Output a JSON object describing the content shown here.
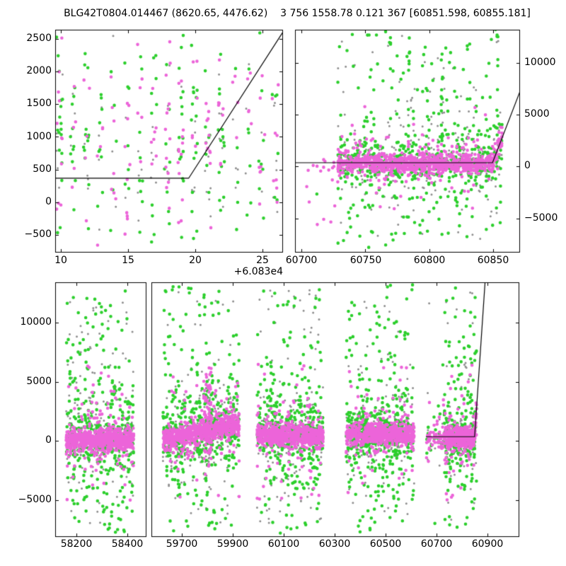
{
  "title": "BLG42T0804.014467 (8620.65, 4476.62)    3 756 1558.78 0.121 367 [60851.598, 60855.181]",
  "chart_data": {
    "type": "scatter",
    "figure_background": "#ffffff",
    "colors": {
      "magenta": "#ec64d9",
      "green": "#2ccf2c",
      "gray": "#8e8e8e",
      "model_line": "#000000"
    },
    "marker_px": {
      "magenta": 4.6,
      "green": 4.6,
      "gray": 3.0
    },
    "model": {
      "baseline_flux": 367,
      "t_kink": 60849.5,
      "slope_per_day": 320
    },
    "band_profile": {
      "magenta": {
        "core": [
          0.8,
          430
        ],
        "mid": [
          0.15,
          1300
        ],
        "wild": [
          -5000,
          6500
        ]
      },
      "green": {
        "core": [
          0.4,
          800
        ],
        "mid": [
          0.32,
          2300
        ],
        "wild": [
          -7800,
          13200
        ]
      },
      "gray": {
        "core": [
          0.5,
          900
        ],
        "mid": [
          0.3,
          2500
        ],
        "wild": [
          -7000,
          12800
        ]
      }
    },
    "panels": [
      {
        "id": "top_left",
        "xlim": [
          60839.6,
          60856.5
        ],
        "ylim": [
          -770,
          2640
        ],
        "x_offset_text": "+6.083e4",
        "xticks": [
          {
            "v": 60840,
            "label": "10"
          },
          {
            "v": 60845,
            "label": "15"
          },
          {
            "v": 60850,
            "label": "20"
          },
          {
            "v": 60855,
            "label": "25"
          }
        ],
        "yticks": [
          {
            "v": 2500,
            "label": "2500"
          },
          {
            "v": 2000,
            "label": "2000"
          },
          {
            "v": 1500,
            "label": "1500"
          },
          {
            "v": 1000,
            "label": "1000"
          },
          {
            "v": 500,
            "label": "500"
          },
          {
            "v": 0,
            "label": "0"
          },
          {
            "v": -500,
            "label": "−500"
          }
        ],
        "model_line": [
          [
            60839.6,
            367
          ],
          [
            60849.5,
            367
          ],
          [
            60856.5,
            2607
          ]
        ],
        "clusters": [
          {
            "x0": 60839.7,
            "x1": 60856.4,
            "n": 380,
            "nightly": true,
            "dist": "uniform",
            "center": 900,
            "halfwidth": 1800,
            "mix": {
              "magenta": 0.35,
              "green": 0.43,
              "gray": 0.22
            }
          }
        ],
        "spikes": []
      },
      {
        "id": "top_right",
        "xlim": [
          60695,
          60871
        ],
        "ylim": [
          -8300,
          13200
        ],
        "xticks": [
          {
            "v": 60700,
            "label": "60700"
          },
          {
            "v": 60750,
            "label": "60750"
          },
          {
            "v": 60800,
            "label": "60800"
          },
          {
            "v": 60850,
            "label": "60850"
          }
        ],
        "yticks": [
          {
            "v": 10000,
            "label": "10000"
          },
          {
            "v": 5000,
            "label": "5000"
          },
          {
            "v": 0,
            "label": "0"
          },
          {
            "v": -5000,
            "label": "−5000"
          }
        ],
        "model_line": [
          [
            60695,
            367
          ],
          [
            60849.5,
            367
          ],
          [
            60871,
            7250
          ]
        ],
        "clusters": [
          {
            "x0": 60703,
            "x1": 60728,
            "n": 20,
            "nightly": true,
            "dist": "early",
            "mix": {
              "magenta": 0.8,
              "green": 0.1,
              "gray": 0.1
            }
          },
          {
            "x0": 60728.5,
            "x1": 60857,
            "n": 1850,
            "nightly": true,
            "dist": "band",
            "base": 280,
            "rise": true,
            "mix": {
              "magenta": 0.52,
              "green": 0.33,
              "gray": 0.15
            }
          }
        ],
        "spikes": [
          {
            "x": 60784,
            "w": 1.5,
            "n": 10,
            "color": "green",
            "y0": 2500,
            "y1": 12800
          },
          {
            "x": 60786,
            "w": 2.0,
            "n": 6,
            "color": "gray",
            "y0": 2000,
            "y1": 9000
          },
          {
            "x": 60810,
            "w": 1.5,
            "n": 14,
            "color": "green",
            "y0": 2000,
            "y1": 11000
          },
          {
            "x": 60811,
            "w": 2.0,
            "n": 8,
            "color": "gray",
            "y0": 2000,
            "y1": 9500
          },
          {
            "x": 60853,
            "w": 1.5,
            "n": 10,
            "color": "green",
            "y0": 3000,
            "y1": 13000
          }
        ]
      },
      {
        "id": "bottom_left",
        "xlim": [
          58117,
          58475
        ],
        "ylim": [
          -8100,
          13400
        ],
        "xticks": [
          {
            "v": 58200,
            "label": "58200"
          },
          {
            "v": 58400,
            "label": "58400"
          }
        ],
        "yticks": [
          {
            "v": 10000,
            "label": "10000"
          },
          {
            "v": 5000,
            "label": "5000"
          },
          {
            "v": 0,
            "label": "0"
          },
          {
            "v": -5000,
            "label": "−5000"
          }
        ],
        "clusters": [
          {
            "x0": 58160,
            "x1": 58425,
            "n": 1500,
            "dist": "band",
            "base": 100,
            "mix": {
              "magenta": 0.5,
              "green": 0.34,
              "gray": 0.16
            }
          }
        ],
        "spikes": []
      },
      {
        "id": "bottom_right",
        "xlim": [
          59580,
          61025
        ],
        "ylim": [
          -8100,
          13400
        ],
        "xticks": [
          {
            "v": 59700,
            "label": "59700"
          },
          {
            "v": 59900,
            "label": "59900"
          },
          {
            "v": 60100,
            "label": "60100"
          },
          {
            "v": 60300,
            "label": "60300"
          },
          {
            "v": 60500,
            "label": "60500"
          },
          {
            "v": 60700,
            "label": "60700"
          },
          {
            "v": 60900,
            "label": "60900"
          }
        ],
        "yticks": [
          {
            "v": 10000
          },
          {
            "v": 5000
          },
          {
            "v": 0
          },
          {
            "v": -5000
          }
        ],
        "model_line": [
          [
            60658,
            367
          ],
          [
            60849.5,
            367
          ],
          [
            60890.5,
            13400
          ]
        ],
        "clusters": [
          {
            "x0": 59625,
            "x1": 59925,
            "n": 1500,
            "dist": "band",
            "base": 100,
            "tilt": 4.5,
            "mix": {
              "magenta": 0.5,
              "green": 0.34,
              "gray": 0.16
            }
          },
          {
            "x0": 59995,
            "x1": 60255,
            "n": 1450,
            "dist": "band",
            "base": 500,
            "mix": {
              "magenta": 0.5,
              "green": 0.34,
              "gray": 0.16
            }
          },
          {
            "x0": 60345,
            "x1": 60612,
            "n": 1400,
            "dist": "band",
            "base": 550,
            "mix": {
              "magenta": 0.5,
              "green": 0.34,
              "gray": 0.16
            }
          },
          {
            "x0": 60660,
            "x1": 60730,
            "n": 90,
            "dist": "band",
            "base": 250,
            "mix": {
              "magenta": 0.6,
              "green": 0.25,
              "gray": 0.15
            }
          },
          {
            "x0": 60730,
            "x1": 60857,
            "n": 820,
            "dist": "band",
            "base": 300,
            "rise": true,
            "mix": {
              "magenta": 0.52,
              "green": 0.33,
              "gray": 0.15
            }
          }
        ],
        "spikes": [
          {
            "x": 59800,
            "w": 30,
            "n": 60,
            "color": "magenta",
            "y0": -1500,
            "y1": 6500
          },
          {
            "x": 59807,
            "w": 8,
            "n": 30,
            "color": "gray",
            "y0": -4000,
            "y1": 5200
          },
          {
            "x": 59795,
            "w": 14,
            "n": 20,
            "color": "gray",
            "y0": -2500,
            "y1": 5500
          }
        ]
      }
    ]
  }
}
